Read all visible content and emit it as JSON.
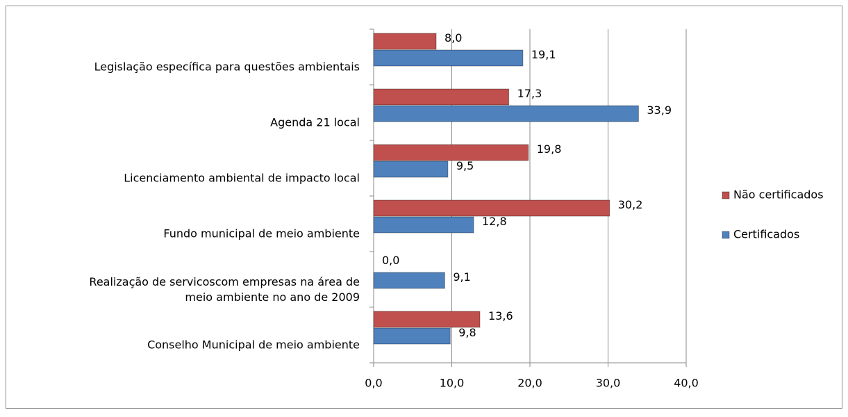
{
  "chart_data": {
    "type": "bar",
    "orientation": "horizontal",
    "categories": [
      "Legislação específica para questões ambientais",
      "Agenda 21 local",
      "Licenciamento ambiental de impacto local",
      "Fundo municipal de meio ambiente",
      "Realização de servicoscom  empresas na área de\nmeio ambiente no ano de 2009",
      "Conselho Municipal de meio ambiente"
    ],
    "series": [
      {
        "name": "Não certificados",
        "color": "#c0504d",
        "values": [
          8.0,
          17.3,
          19.8,
          30.2,
          0.0,
          13.6
        ],
        "value_labels": [
          "8,0",
          "17,3",
          "19,8",
          "30,2",
          "0,0",
          "13,6"
        ]
      },
      {
        "name": "Certificados",
        "color": "#4f81bd",
        "values": [
          19.1,
          33.9,
          9.5,
          12.8,
          9.1,
          9.8
        ],
        "value_labels": [
          "19,1",
          "33,9",
          "9,5",
          "12,8",
          "9,1",
          "9,8"
        ]
      }
    ],
    "xlim": [
      0,
      40
    ],
    "xticks": [
      {
        "value": 0,
        "label": "0,0"
      },
      {
        "value": 10,
        "label": "10,0"
      },
      {
        "value": 20,
        "label": "20,0"
      },
      {
        "value": 30,
        "label": "30,0"
      },
      {
        "value": 40,
        "label": "40,0"
      }
    ],
    "grid": true,
    "legend": "right"
  }
}
